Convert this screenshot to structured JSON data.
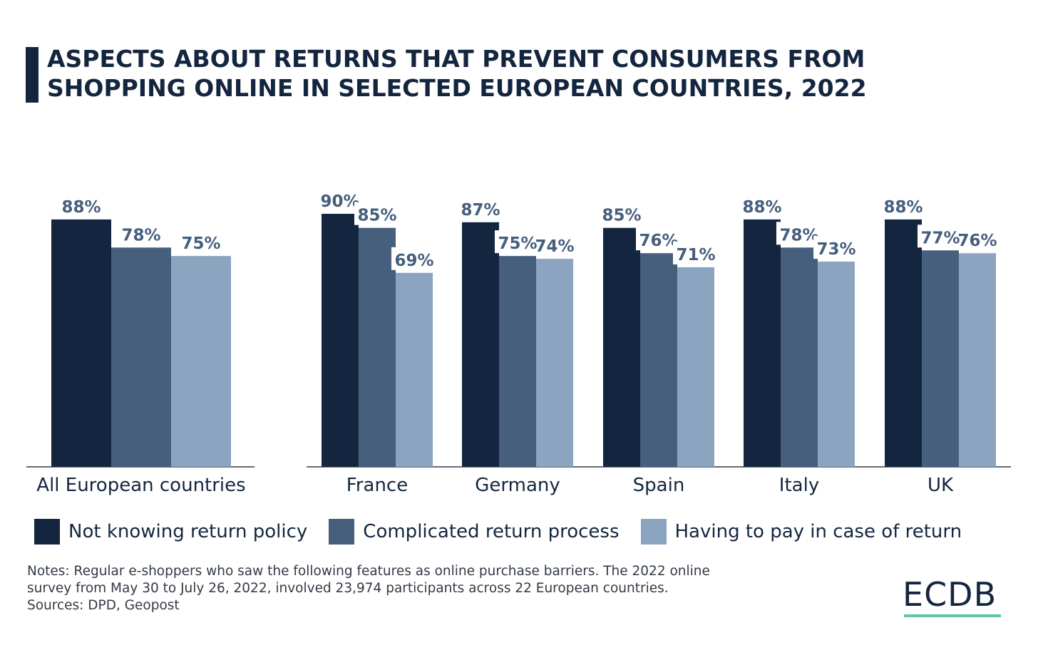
{
  "title_lines": [
    "ASPECTS ABOUT RETURNS THAT PREVENT CONSUMERS FROM",
    "SHOPPING ONLINE IN SELECTED EUROPEAN COUNTRIES, 2022"
  ],
  "legend": [
    {
      "label": "Not knowing return policy",
      "color": "#14263f"
    },
    {
      "label": "Complicated return process",
      "color": "#465f7d"
    },
    {
      "label": "Having to pay in case of return",
      "color": "#8ba4bf"
    }
  ],
  "notes": [
    "Notes: Regular e-shoppers who saw the following features as online purchase barriers. The 2022 online",
    "survey from May 30 to July 26, 2022, involved 23,974 participants across 22 European countries.",
    "Sources: DPD, Geopost"
  ],
  "logo": "ECDB",
  "logo_accent_color": "#5cc7a8",
  "chart_data": {
    "type": "bar",
    "title": "ASPECTS ABOUT RETURNS THAT PREVENT CONSUMERS FROM SHOPPING ONLINE IN SELECTED EUROPEAN COUNTRIES, 2022",
    "unit": "%",
    "categories": [
      "All European countries",
      "France",
      "Germany",
      "Spain",
      "Italy",
      "UK"
    ],
    "series": [
      {
        "name": "Not knowing return policy",
        "values": [
          88,
          90,
          87,
          85,
          88,
          88
        ],
        "color": "#14263f"
      },
      {
        "name": "Complicated return process",
        "values": [
          78,
          85,
          75,
          76,
          78,
          77
        ],
        "color": "#465f7d"
      },
      {
        "name": "Having to pay in case of return",
        "values": [
          75,
          69,
          74,
          71,
          73,
          76
        ],
        "color": "#8ba4bf"
      }
    ],
    "value_labels": [
      [
        "88%",
        "90%",
        "87%",
        "85%",
        "88%",
        "88%"
      ],
      [
        "78%",
        "85%",
        "75%",
        "76%",
        "78%",
        "77%"
      ],
      [
        "75%",
        "69%",
        "74%",
        "71%",
        "73%",
        "76%"
      ]
    ],
    "ylim": [
      0,
      100
    ],
    "grid": false,
    "legend_position": "bottom"
  }
}
